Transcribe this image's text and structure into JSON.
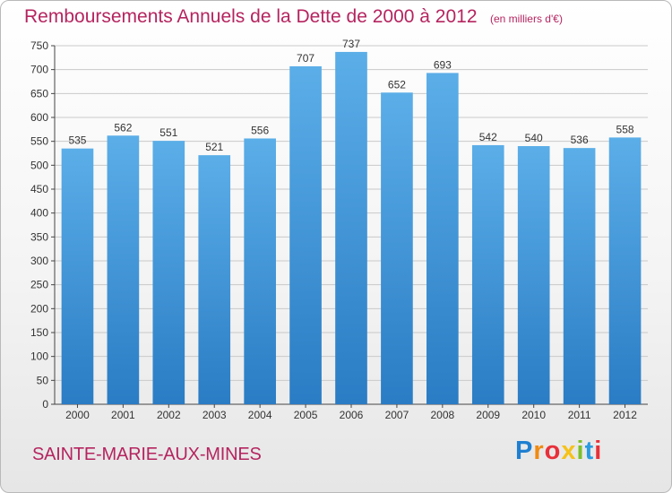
{
  "header": {
    "title": "Remboursements Annuels de la Dette de 2000 à 2012",
    "unit": "(en milliers d'€)"
  },
  "footer": {
    "commune": "SAINTE-MARIE-AUX-MINES",
    "logo": {
      "text": "Proxiti",
      "letters": [
        {
          "ch": "P",
          "color": "#1e7fd0"
        },
        {
          "ch": "r",
          "color": "#f08a12"
        },
        {
          "ch": "o",
          "color": "#e8303a"
        },
        {
          "ch": "x",
          "color": "#f6c21a"
        },
        {
          "ch": "i",
          "color": "#7cbf2a"
        },
        {
          "ch": "t",
          "color": "#2a9be0"
        },
        {
          "ch": "i",
          "color": "#e8303a"
        }
      ]
    }
  },
  "colors": {
    "bar_top": "#5baee8",
    "bar_bottom": "#2a7cc4",
    "grid": "#c9c9c9",
    "axis": "#444444",
    "text": "#333333",
    "accent": "#b5245f"
  },
  "chart_data": {
    "type": "bar",
    "categories": [
      "2000",
      "2001",
      "2002",
      "2003",
      "2004",
      "2005",
      "2006",
      "2007",
      "2008",
      "2009",
      "2010",
      "2011",
      "2012"
    ],
    "values": [
      535,
      562,
      551,
      521,
      556,
      707,
      737,
      652,
      693,
      542,
      540,
      536,
      558
    ],
    "ylim": [
      0,
      750
    ],
    "yticks": [
      0,
      50,
      100,
      150,
      200,
      250,
      300,
      350,
      400,
      450,
      500,
      550,
      600,
      650,
      700,
      750
    ],
    "grid": true,
    "data_labels": true
  }
}
